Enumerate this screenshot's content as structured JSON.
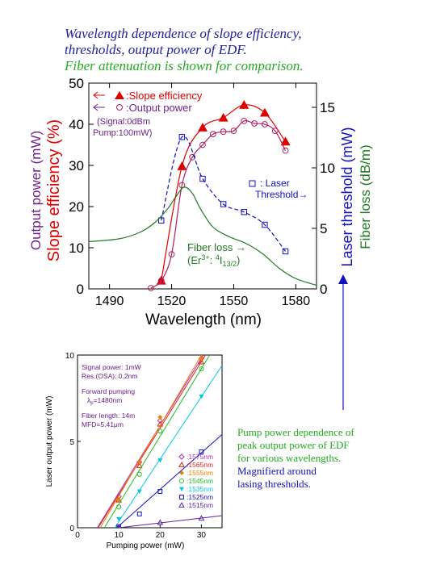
{
  "caption": {
    "line1": "Wavelength dependence of slope efficiency,",
    "line2": "thresholds, output power of EDF.",
    "line3": "Fiber attenuation is shown for comparison.",
    "color_main": "#2020a0",
    "color_green": "#22aa22"
  },
  "side_note": {
    "line1": "Pump power dependence of",
    "line2": "peak output power of EDF",
    "line3": "for various wavelengths.",
    "line4": "Magnifierd around",
    "line5": "lasing thresholds."
  },
  "chart_data": [
    {
      "type": "line",
      "xlabel": "Wavelength (nm)",
      "xlim": [
        1480,
        1590
      ],
      "xticks": [
        1490,
        1520,
        1550,
        1580
      ],
      "ylabel_left_1": "Output power (mW)",
      "ylabel_left_2": "Slope efficiency (%)",
      "ylim_left": [
        0,
        50
      ],
      "yticks_left": [
        0,
        10,
        20,
        30,
        40,
        50
      ],
      "ylabel_right_1": "Laser threshold (mW)",
      "ylabel_right_2": "Fiber loss (dB/m)",
      "ylim_right": [
        0,
        17
      ],
      "yticks_right": [
        0,
        5,
        10,
        15
      ],
      "annotations": {
        "slope": ":Slope efficiency",
        "output": ":Output power",
        "signal": "(Signal:0dBm",
        "pump": "Pump:100mW)",
        "threshold_1": ": Laser",
        "threshold_2": "Threshold→",
        "fiber_loss_1": "Fiber loss →",
        "fiber_loss_2": "(Er",
        "fiber_loss_sup": "3+",
        "fiber_loss_3": ": ",
        "fiber_loss_sup2": "4",
        "fiber_loss_4": "I",
        "fiber_loss_sub": "13/2",
        "fiber_loss_5": ")"
      },
      "series": [
        {
          "name": "Slope efficiency",
          "axis": "left",
          "color": "#e00000",
          "marker": "triangle-filled",
          "x": [
            1515,
            1525,
            1535,
            1545,
            1555,
            1565,
            1575
          ],
          "y": [
            2,
            29.8,
            39.2,
            41.6,
            44.7,
            42.8,
            35.8
          ]
        },
        {
          "name": "Output power",
          "axis": "left",
          "color": "#b02060",
          "marker": "circle-open",
          "x": [
            1510,
            1515,
            1520,
            1525,
            1530,
            1535,
            1540,
            1545,
            1550,
            1555,
            1560,
            1565,
            1570,
            1575
          ],
          "y": [
            0.2,
            2,
            8.4,
            25.2,
            32,
            35,
            37.6,
            38.2,
            38.4,
            40.8,
            40.2,
            40,
            38.4,
            33.6
          ]
        },
        {
          "name": "Laser Threshold",
          "axis": "right",
          "color": "#1010c0",
          "marker": "square-open",
          "x": [
            1515,
            1525,
            1535,
            1545,
            1555,
            1565,
            1575
          ],
          "y": [
            5.65,
            12.55,
            9.1,
            7,
            6.35,
            5.3,
            3.1
          ]
        },
        {
          "name": "Fiber loss",
          "axis": "right",
          "color": "#207a20",
          "marker": "none",
          "x": [
            1480,
            1495,
            1505,
            1512,
            1518,
            1522,
            1526,
            1530,
            1534,
            1540,
            1548,
            1556,
            1564,
            1572,
            1580,
            1590
          ],
          "y": [
            3.9,
            4.15,
            4.7,
            5.5,
            6.6,
            7.6,
            8.4,
            7.9,
            6.6,
            5.1,
            4.3,
            3.75,
            2.9,
            1.7,
            0.85,
            0.3
          ]
        }
      ]
    },
    {
      "type": "line",
      "xlabel": "Pumping power (mW)",
      "ylabel": "Laser output power (mW)",
      "xlim": [
        0,
        35
      ],
      "ylim": [
        0,
        10
      ],
      "xticks": [
        0,
        10,
        20,
        30
      ],
      "yticks": [
        0,
        5,
        10
      ],
      "annotations": {
        "a1": "Signal power: 1mW",
        "a2": "Res.(OSA): 0.2nm",
        "a3": "Forward pumping",
        "a4_pre": "λ",
        "a4_sub": "p",
        "a4_post": "=1480nm",
        "a5": "Fiber length: 14m",
        "a6": "MFD=5.41μm"
      },
      "series": [
        {
          "name": ":1575nm",
          "color": "#b030b0",
          "marker": "diamond-open",
          "x": [
            10,
            15,
            20,
            30
          ],
          "y": [
            1.8,
            3.8,
            6.2,
            9.8
          ],
          "fit": [
            [
              4.8,
              0
            ],
            [
              30.5,
              10
            ]
          ]
        },
        {
          "name": ":1565nm",
          "color": "#e02020",
          "marker": "triangle-open",
          "x": [
            10,
            15,
            20,
            30
          ],
          "y": [
            1.6,
            3.6,
            6.0,
            9.6
          ],
          "fit": [
            [
              5.0,
              0
            ],
            [
              31.0,
              10
            ]
          ]
        },
        {
          "name": ":1555nm",
          "color": "#f08000",
          "marker": "diamond-filled",
          "x": [
            10,
            15,
            20,
            30
          ],
          "y": [
            1.6,
            3.8,
            6.4,
            9.8
          ],
          "fit": [
            [
              5.5,
              0
            ],
            [
              30.0,
              10
            ]
          ]
        },
        {
          "name": ":1545nm",
          "color": "#20c020",
          "marker": "circle-open",
          "x": [
            10,
            15,
            20,
            30
          ],
          "y": [
            1.2,
            3.1,
            5.6,
            9.2
          ],
          "fit": [
            [
              6.5,
              0
            ],
            [
              32.0,
              10
            ]
          ]
        },
        {
          "name": ":1535nm",
          "color": "#00c8e8",
          "marker": "triangle-down-filled",
          "x": [
            10,
            15,
            20,
            30
          ],
          "y": [
            0.5,
            2.1,
            3.9,
            7.6
          ],
          "fit": [
            [
              9.0,
              0
            ],
            [
              35.0,
              9.4
            ]
          ]
        },
        {
          "name": ":1525nm",
          "color": "#1010c0",
          "marker": "square-open",
          "x": [
            10,
            15,
            20,
            30
          ],
          "y": [
            0.05,
            0.8,
            2.1,
            4.4
          ],
          "fit": [
            [
              9.5,
              0
            ],
            [
              35.0,
              5.4
            ]
          ]
        },
        {
          "name": ":1515nm",
          "color": "#6020a0",
          "marker": "triangle-open",
          "x": [
            10,
            20,
            30
          ],
          "y": [
            0.05,
            0.3,
            0.55
          ],
          "fit": [
            [
              10.0,
              0
            ],
            [
              35.0,
              0.7
            ]
          ]
        }
      ]
    }
  ]
}
